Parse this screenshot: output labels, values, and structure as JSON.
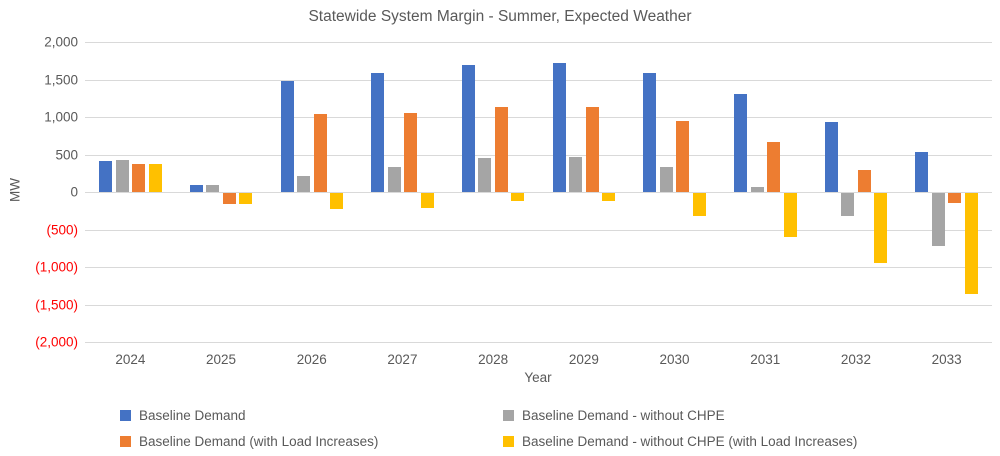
{
  "title": "Statewide System Margin - Summer, Expected Weather",
  "colors": {
    "axis_text": "#595959",
    "negative_tick_text": "#ff0000",
    "gridline": "#d9d9d9",
    "series_blue": "#4472c4",
    "series_gray": "#a5a5a5",
    "series_orange": "#ed7d31",
    "series_yellow": "#ffc000"
  },
  "chart_data": {
    "type": "bar",
    "title": "Statewide System Margin - Summer, Expected Weather",
    "xlabel": "Year",
    "ylabel": "MW",
    "ylim": [
      -2000,
      2000
    ],
    "grid": true,
    "legend_position": "bottom",
    "categories": [
      "2024",
      "2025",
      "2026",
      "2027",
      "2028",
      "2029",
      "2030",
      "2031",
      "2032",
      "2033"
    ],
    "y_ticks": [
      {
        "value": 2000,
        "label": "2,000"
      },
      {
        "value": 1500,
        "label": "1,500"
      },
      {
        "value": 1000,
        "label": "1,000"
      },
      {
        "value": 500,
        "label": "500"
      },
      {
        "value": 0,
        "label": "0"
      },
      {
        "value": -500,
        "label": "(500)"
      },
      {
        "value": -1000,
        "label": "(1,000)"
      },
      {
        "value": -1500,
        "label": "(1,500)"
      },
      {
        "value": -2000,
        "label": "(2,000)"
      }
    ],
    "series": [
      {
        "name": "Baseline Demand",
        "color": "#4472c4",
        "values": [
          420,
          90,
          1475,
          1590,
          1690,
          1720,
          1585,
          1310,
          930,
          530
        ]
      },
      {
        "name": "Baseline Demand - without CHPE",
        "color": "#a5a5a5",
        "values": [
          430,
          100,
          220,
          340,
          450,
          470,
          330,
          70,
          -300,
          -710
        ]
      },
      {
        "name": "Baseline Demand (with Load Increases)",
        "color": "#ed7d31",
        "values": [
          375,
          -150,
          1040,
          1050,
          1140,
          1140,
          945,
          670,
          300,
          -130
        ]
      },
      {
        "name": "Baseline Demand - without CHPE (with Load Increases)",
        "color": "#ffc000",
        "values": [
          380,
          -150,
          -210,
          -200,
          -110,
          -100,
          -300,
          -580,
          -930,
          -1350
        ]
      }
    ]
  }
}
